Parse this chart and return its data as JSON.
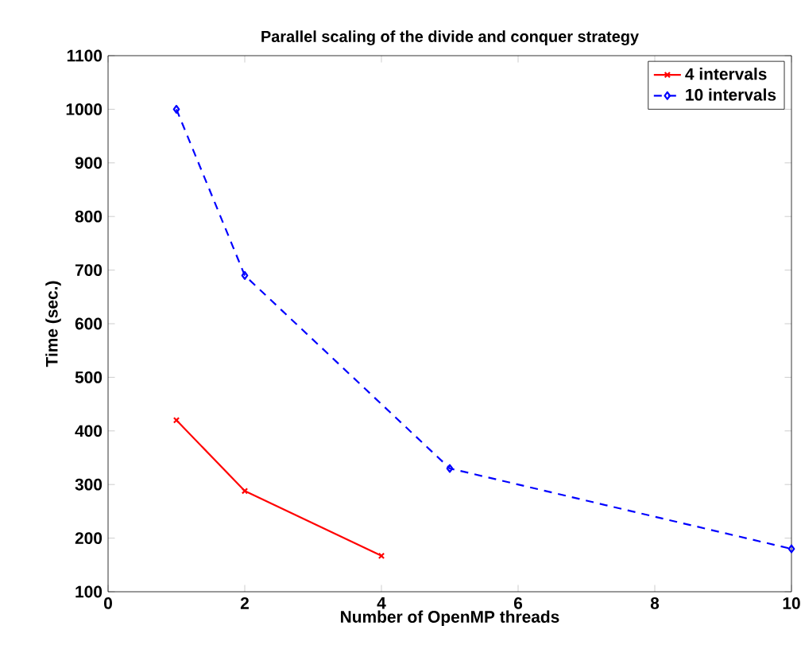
{
  "chart_data": {
    "type": "line",
    "title": "Parallel scaling of the divide and conquer strategy",
    "xlabel": "Number of OpenMP threads",
    "ylabel": "Time (sec.)",
    "xlim": [
      0,
      10
    ],
    "ylim": [
      100,
      1100
    ],
    "xticks": [
      0,
      2,
      4,
      6,
      8,
      10
    ],
    "yticks": [
      100,
      200,
      300,
      400,
      500,
      600,
      700,
      800,
      900,
      1000,
      1100
    ],
    "legend": "top right",
    "grid": false,
    "series": [
      {
        "name": "4 intervals",
        "color": "#ff0000",
        "x": [
          1,
          2,
          4
        ],
        "values": [
          420,
          288,
          167
        ],
        "marker": "cross",
        "line_style": "solid"
      },
      {
        "name": "10 intervals",
        "color": "#0000ff",
        "x": [
          1,
          2,
          5,
          10
        ],
        "values": [
          1000,
          690,
          330,
          180
        ],
        "marker": "diamond",
        "line_style": "dashed"
      }
    ]
  }
}
